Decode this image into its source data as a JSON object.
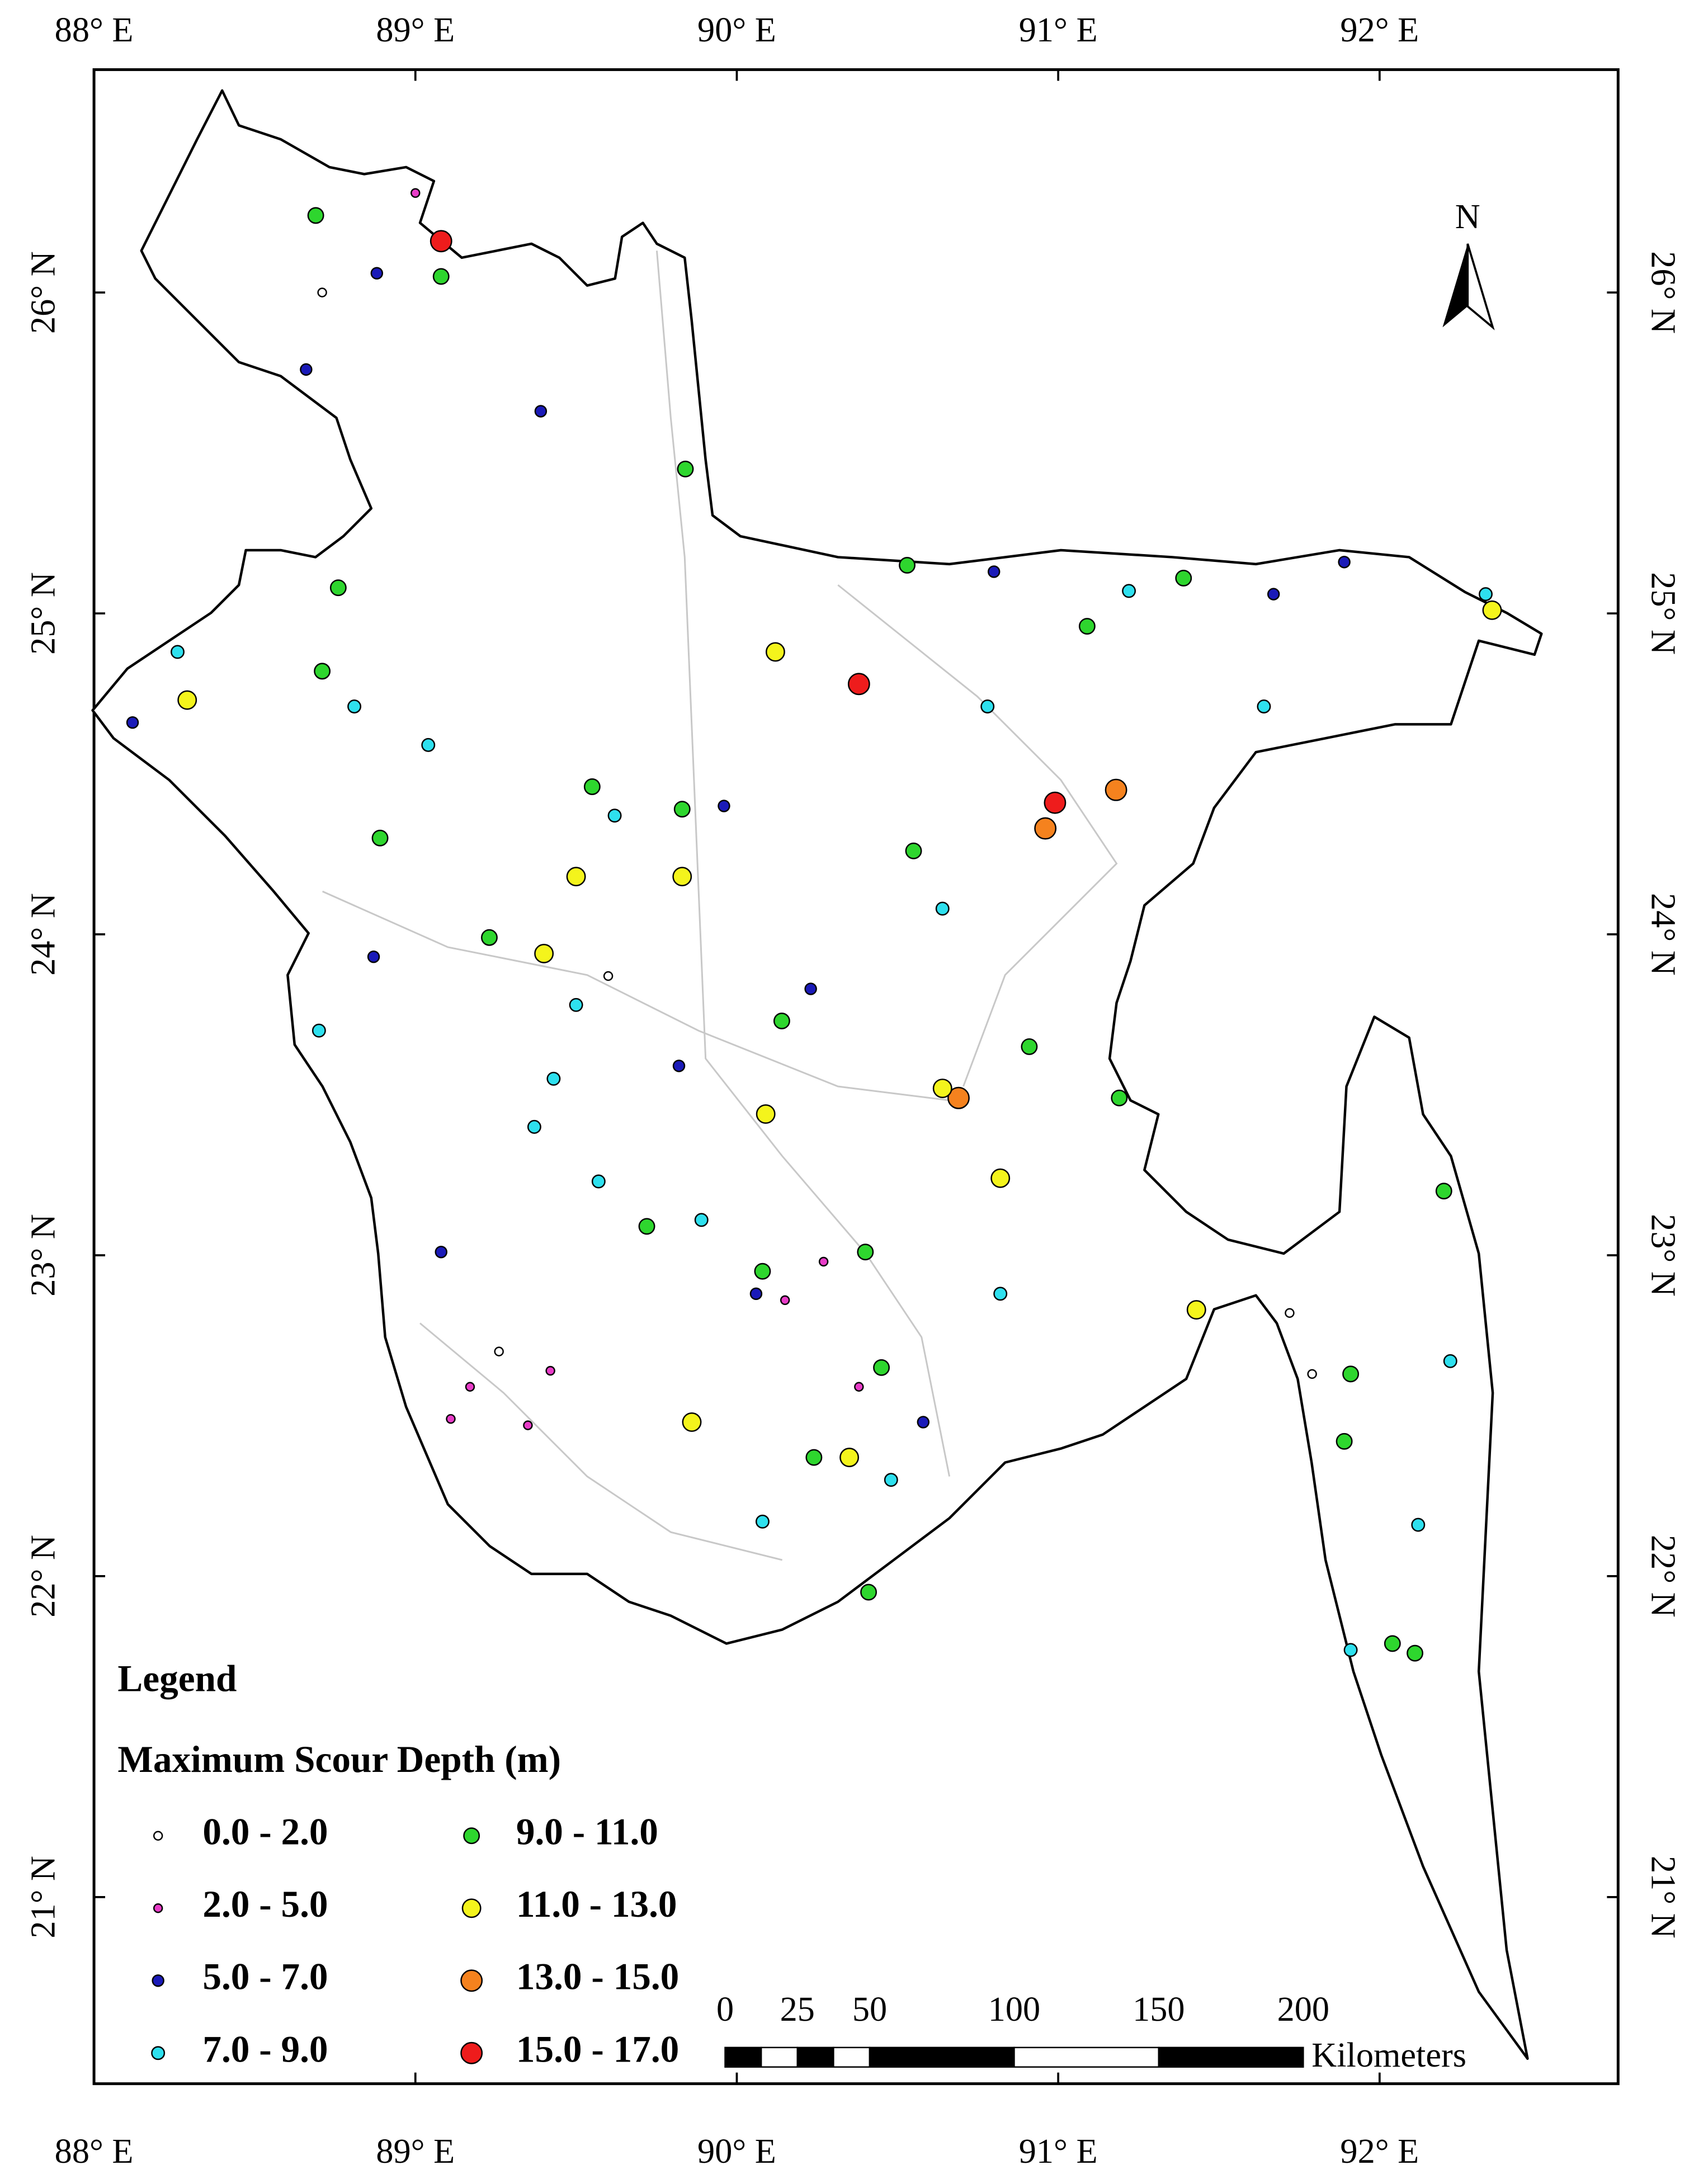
{
  "map": {
    "xticks": [
      {
        "value": 88,
        "label": "88° E"
      },
      {
        "value": 89,
        "label": "89° E"
      },
      {
        "value": 90,
        "label": "90° E"
      },
      {
        "value": 91,
        "label": "91° E"
      },
      {
        "value": 92,
        "label": "92° E"
      }
    ],
    "yticks": [
      {
        "value": 26,
        "label": "26° N"
      },
      {
        "value": 25,
        "label": "25° N"
      },
      {
        "value": 24,
        "label": "24° N"
      },
      {
        "value": 23,
        "label": "23° N"
      },
      {
        "value": 22,
        "label": "22° N"
      },
      {
        "value": 21,
        "label": "21° N"
      }
    ],
    "north": "N",
    "legend": {
      "title": "Legend",
      "subtitle": "Maximum Scour Depth (m)",
      "classes": [
        {
          "label": "0.0 - 2.0",
          "color": "#ffffff"
        },
        {
          "label": "2.0 - 5.0",
          "color": "#e83cc8"
        },
        {
          "label": "5.0 - 7.0",
          "color": "#1a1ab8"
        },
        {
          "label": "7.0 - 9.0",
          "color": "#2ee0ee"
        },
        {
          "label": "9.0 - 11.0",
          "color": "#2ed62e"
        },
        {
          "label": "11.0 - 13.0",
          "color": "#f4f41c"
        },
        {
          "label": "13.0 - 15.0",
          "color": "#f5821e"
        },
        {
          "label": "15.0 - 17.0",
          "color": "#ee1c1c"
        }
      ]
    },
    "scalebar": {
      "ticks": [
        0,
        25,
        50,
        100,
        150,
        200
      ],
      "unit": "Kilometers"
    },
    "points": [
      {
        "lon": 88.69,
        "lat": 26.24,
        "class": 4
      },
      {
        "lon": 89.0,
        "lat": 26.31,
        "class": 1
      },
      {
        "lon": 89.08,
        "lat": 26.16,
        "class": 7
      },
      {
        "lon": 89.08,
        "lat": 26.05,
        "class": 4
      },
      {
        "lon": 88.71,
        "lat": 26.0,
        "class": 0
      },
      {
        "lon": 88.88,
        "lat": 26.06,
        "class": 2
      },
      {
        "lon": 88.66,
        "lat": 25.76,
        "class": 2
      },
      {
        "lon": 89.39,
        "lat": 25.63,
        "class": 2
      },
      {
        "lon": 89.84,
        "lat": 25.45,
        "class": 4
      },
      {
        "lon": 90.38,
        "lat": 24.78,
        "class": 7
      },
      {
        "lon": 90.99,
        "lat": 24.41,
        "class": 7
      },
      {
        "lon": 90.96,
        "lat": 24.33,
        "class": 6
      },
      {
        "lon": 91.18,
        "lat": 24.45,
        "class": 6
      },
      {
        "lon": 90.69,
        "lat": 23.49,
        "class": 6
      },
      {
        "lon": 90.64,
        "lat": 23.52,
        "class": 5
      },
      {
        "lon": 90.12,
        "lat": 24.88,
        "class": 5
      },
      {
        "lon": 92.35,
        "lat": 25.01,
        "class": 5
      },
      {
        "lon": 88.29,
        "lat": 24.73,
        "class": 5
      },
      {
        "lon": 89.5,
        "lat": 24.18,
        "class": 5
      },
      {
        "lon": 89.4,
        "lat": 23.94,
        "class": 5
      },
      {
        "lon": 89.83,
        "lat": 24.18,
        "class": 5
      },
      {
        "lon": 90.09,
        "lat": 23.44,
        "class": 5
      },
      {
        "lon": 90.82,
        "lat": 23.24,
        "class": 5
      },
      {
        "lon": 91.43,
        "lat": 22.83,
        "class": 5
      },
      {
        "lon": 89.86,
        "lat": 22.48,
        "class": 5
      },
      {
        "lon": 90.35,
        "lat": 22.37,
        "class": 5
      },
      {
        "lon": 88.76,
        "lat": 25.08,
        "class": 4
      },
      {
        "lon": 88.71,
        "lat": 24.82,
        "class": 4
      },
      {
        "lon": 88.89,
        "lat": 24.3,
        "class": 4
      },
      {
        "lon": 89.23,
        "lat": 23.99,
        "class": 4
      },
      {
        "lon": 89.72,
        "lat": 23.09,
        "class": 4
      },
      {
        "lon": 90.08,
        "lat": 22.95,
        "class": 4
      },
      {
        "lon": 90.4,
        "lat": 23.01,
        "class": 4
      },
      {
        "lon": 90.45,
        "lat": 22.65,
        "class": 4
      },
      {
        "lon": 90.24,
        "lat": 22.37,
        "class": 4
      },
      {
        "lon": 90.41,
        "lat": 21.95,
        "class": 4
      },
      {
        "lon": 92.2,
        "lat": 23.2,
        "class": 4
      },
      {
        "lon": 91.91,
        "lat": 22.63,
        "class": 4
      },
      {
        "lon": 91.89,
        "lat": 22.42,
        "class": 4
      },
      {
        "lon": 92.04,
        "lat": 21.79,
        "class": 4
      },
      {
        "lon": 92.11,
        "lat": 21.76,
        "class": 4
      },
      {
        "lon": 90.53,
        "lat": 25.15,
        "class": 4
      },
      {
        "lon": 91.39,
        "lat": 25.11,
        "class": 4
      },
      {
        "lon": 91.09,
        "lat": 24.96,
        "class": 4
      },
      {
        "lon": 90.55,
        "lat": 24.26,
        "class": 4
      },
      {
        "lon": 91.19,
        "lat": 23.49,
        "class": 4
      },
      {
        "lon": 90.91,
        "lat": 23.65,
        "class": 4
      },
      {
        "lon": 90.14,
        "lat": 23.73,
        "class": 4
      },
      {
        "lon": 89.55,
        "lat": 24.46,
        "class": 4
      },
      {
        "lon": 89.83,
        "lat": 24.39,
        "class": 4
      },
      {
        "lon": 91.72,
        "lat": 22.82,
        "class": 0
      },
      {
        "lon": 91.79,
        "lat": 22.63,
        "class": 0
      },
      {
        "lon": 89.26,
        "lat": 22.7,
        "class": 0
      },
      {
        "lon": 89.6,
        "lat": 23.87,
        "class": 0
      },
      {
        "lon": 89.17,
        "lat": 22.59,
        "class": 1
      },
      {
        "lon": 89.11,
        "lat": 22.49,
        "class": 1
      },
      {
        "lon": 89.35,
        "lat": 22.47,
        "class": 1
      },
      {
        "lon": 89.42,
        "lat": 22.64,
        "class": 1
      },
      {
        "lon": 90.15,
        "lat": 22.86,
        "class": 1
      },
      {
        "lon": 90.38,
        "lat": 22.59,
        "class": 1
      },
      {
        "lon": 90.27,
        "lat": 22.98,
        "class": 1
      },
      {
        "lon": 88.12,
        "lat": 24.66,
        "class": 2
      },
      {
        "lon": 89.08,
        "lat": 23.01,
        "class": 2
      },
      {
        "lon": 90.58,
        "lat": 22.48,
        "class": 2
      },
      {
        "lon": 91.67,
        "lat": 25.06,
        "class": 2
      },
      {
        "lon": 91.89,
        "lat": 25.16,
        "class": 2
      },
      {
        "lon": 90.8,
        "lat": 25.13,
        "class": 2
      },
      {
        "lon": 88.87,
        "lat": 23.93,
        "class": 2
      },
      {
        "lon": 90.06,
        "lat": 22.88,
        "class": 2
      },
      {
        "lon": 89.82,
        "lat": 23.59,
        "class": 2
      },
      {
        "lon": 90.23,
        "lat": 23.83,
        "class": 2
      },
      {
        "lon": 89.96,
        "lat": 24.4,
        "class": 2
      },
      {
        "lon": 88.7,
        "lat": 23.7,
        "class": 3
      },
      {
        "lon": 88.26,
        "lat": 24.88,
        "class": 3
      },
      {
        "lon": 88.81,
        "lat": 24.71,
        "class": 3
      },
      {
        "lon": 89.04,
        "lat": 24.59,
        "class": 3
      },
      {
        "lon": 89.62,
        "lat": 24.37,
        "class": 3
      },
      {
        "lon": 89.5,
        "lat": 23.78,
        "class": 3
      },
      {
        "lon": 89.43,
        "lat": 23.55,
        "class": 3
      },
      {
        "lon": 89.37,
        "lat": 23.4,
        "class": 3
      },
      {
        "lon": 89.57,
        "lat": 23.23,
        "class": 3
      },
      {
        "lon": 89.89,
        "lat": 23.11,
        "class": 3
      },
      {
        "lon": 90.08,
        "lat": 22.17,
        "class": 3
      },
      {
        "lon": 91.91,
        "lat": 21.77,
        "class": 3
      },
      {
        "lon": 92.12,
        "lat": 22.16,
        "class": 3
      },
      {
        "lon": 92.22,
        "lat": 22.67,
        "class": 3
      },
      {
        "lon": 90.82,
        "lat": 22.88,
        "class": 3
      },
      {
        "lon": 90.78,
        "lat": 24.71,
        "class": 3
      },
      {
        "lon": 91.64,
        "lat": 24.71,
        "class": 3
      },
      {
        "lon": 92.33,
        "lat": 25.06,
        "class": 3
      },
      {
        "lon": 91.22,
        "lat": 25.07,
        "class": 3
      },
      {
        "lon": 90.64,
        "lat": 24.08,
        "class": 3
      },
      {
        "lon": 90.48,
        "lat": 22.3,
        "class": 3
      }
    ]
  }
}
